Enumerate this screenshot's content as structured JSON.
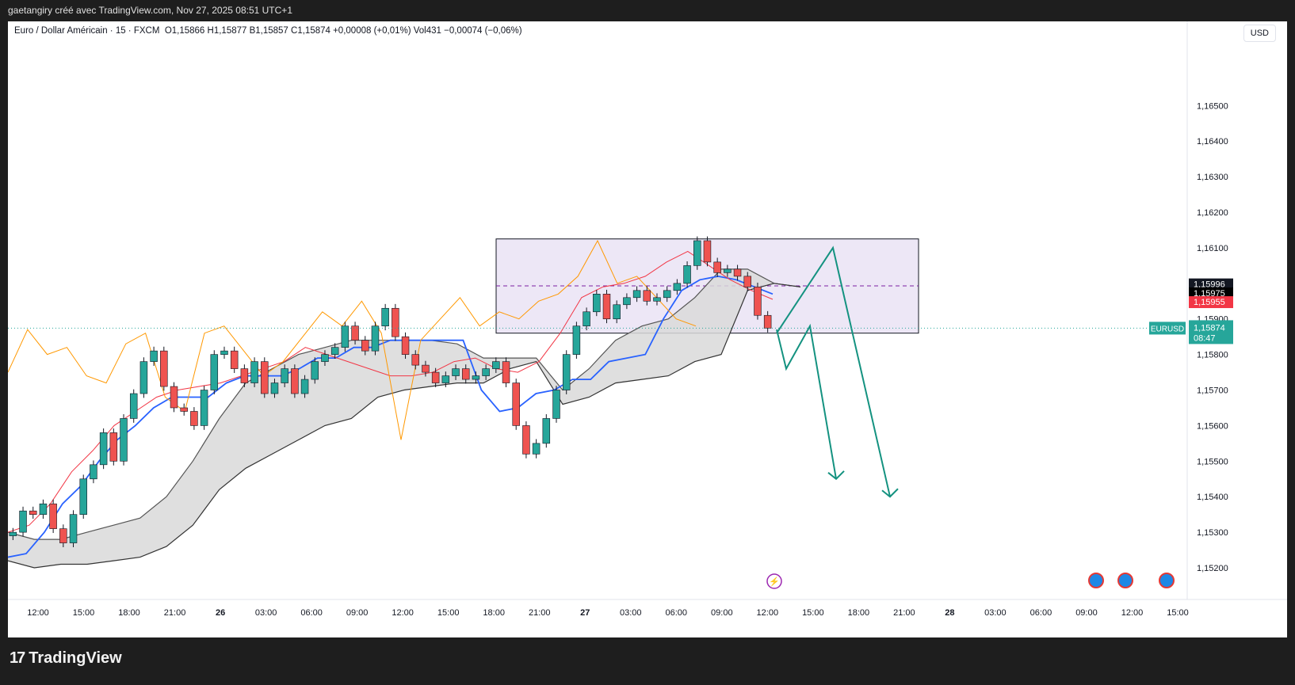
{
  "header": {
    "credit": "gaetangiry créé avec TradingView.com, Nov 27, 2025 08:51 UTC+1"
  },
  "legend": {
    "symbol": "Euro / Dollar Américain · 15 · FXCM",
    "ohlc": "O1,15866  H1,15877  B1,15857  C1,15874  +0,00008 (+0,01%)  Vol431  −0,00074 (−0,06%)"
  },
  "currency_button": "USD",
  "footer": {
    "brand": "TradingView",
    "logo_mark": "17"
  },
  "colors": {
    "up": "#26a69a",
    "down": "#ef5350",
    "fast_line": "#2962ff",
    "slow_line": "#f23645",
    "lagging_line": "#ff9800",
    "box_fill": "#ede7f6",
    "projection": "#149280",
    "cloud": "#d9d9d9"
  },
  "chart_data": {
    "type": "candlestick",
    "symbol": "EURUSD",
    "timeframe": "15",
    "ylim": [
      1.1516,
      1.1667
    ],
    "y_ticks": [
      "1,16500",
      "1,16400",
      "1,16300",
      "1,16200",
      "1,16100",
      "1,15900",
      "1,15800",
      "1,15700",
      "1,15600",
      "1,15500",
      "1,15400",
      "1,15300",
      "1,15200"
    ],
    "x_ticks": [
      "12:00",
      "15:00",
      "18:00",
      "21:00",
      "26",
      "03:00",
      "06:00",
      "09:00",
      "12:00",
      "15:00",
      "18:00",
      "21:00",
      "27",
      "03:00",
      "06:00",
      "09:00",
      "12:00",
      "15:00",
      "18:00",
      "21:00",
      "28",
      "03:00",
      "06:00",
      "09:00",
      "12:00",
      "15:00"
    ],
    "last_price": {
      "symbol_label": "EURUSD",
      "value": "1,15874",
      "countdown": "08:47",
      "y": 1.15874
    },
    "price_tags": [
      {
        "value": "1,15996",
        "y": 1.15996,
        "color": "#131722"
      },
      {
        "value": "1,15975",
        "y": 1.15975,
        "color": "#131722"
      },
      {
        "value": "1,15955",
        "y": 1.15955,
        "color": "#f23645"
      }
    ],
    "close_series": [
      1.153,
      1.1536,
      1.1535,
      1.1538,
      1.1531,
      1.1527,
      1.1535,
      1.1545,
      1.1549,
      1.1558,
      1.155,
      1.1562,
      1.1569,
      1.1578,
      1.1581,
      1.1571,
      1.1565,
      1.1564,
      1.156,
      1.157,
      1.158,
      1.1581,
      1.1576,
      1.1572,
      1.1578,
      1.1569,
      1.1572,
      1.1576,
      1.1569,
      1.1573,
      1.1578,
      1.158,
      1.1582,
      1.1588,
      1.1584,
      1.1581,
      1.1588,
      1.1593,
      1.1585,
      1.158,
      1.1577,
      1.1575,
      1.1572,
      1.1574,
      1.1576,
      1.1573,
      1.1574,
      1.1576,
      1.1578,
      1.1572,
      1.156,
      1.1552,
      1.1555,
      1.1562,
      1.157,
      1.158,
      1.1588,
      1.1592,
      1.1597,
      1.159,
      1.1594,
      1.1596,
      1.1598,
      1.1595,
      1.1596,
      1.1598,
      1.16,
      1.1605,
      1.1612,
      1.1606,
      1.1603,
      1.1604,
      1.1602,
      1.1599,
      1.1591,
      1.15874
    ],
    "series": [
      {
        "name": "",
        "role": "fast-line",
        "values": [
          1.1523,
          1.1524,
          1.153,
          1.1538,
          1.1543,
          1.155,
          1.1556,
          1.156,
          1.1565,
          1.1568,
          1.1568,
          1.1568,
          1.1572,
          1.1574,
          1.1574,
          1.1574,
          1.1576,
          1.1579,
          1.1579,
          1.1582,
          1.1582,
          1.1584,
          1.1584,
          1.1584,
          1.1584,
          1.1584,
          1.157,
          1.1564,
          1.1565,
          1.1569,
          1.157,
          1.1573,
          1.1573,
          1.1578,
          1.1579,
          1.158,
          1.159,
          1.1598,
          1.1601,
          1.1602,
          1.1601,
          1.1599,
          1.1597
        ]
      },
      {
        "name": "",
        "role": "slow-line",
        "values": [
          1.153,
          1.1532,
          1.1538,
          1.1547,
          1.1553,
          1.156,
          1.1564,
          1.1568,
          1.157,
          1.1571,
          1.1572,
          1.1574,
          1.1576,
          1.1578,
          1.1582,
          1.158,
          1.1578,
          1.1576,
          1.1574,
          1.1574,
          1.1575,
          1.1578,
          1.1579,
          1.1576,
          1.1575,
          1.1578,
          1.1586,
          1.1596,
          1.1599,
          1.16,
          1.1602,
          1.1606,
          1.1609,
          1.1605,
          1.1601,
          1.1598,
          1.15955
        ]
      },
      {
        "name": "",
        "role": "lagging-line",
        "values": [
          1.1575,
          1.1587,
          1.158,
          1.1582,
          1.1574,
          1.1572,
          1.1583,
          1.1586,
          1.1568,
          1.1564,
          1.1586,
          1.1588,
          1.1581,
          1.1574,
          1.1578,
          1.1585,
          1.1592,
          1.1588,
          1.1595,
          1.1586,
          1.1556,
          1.1584,
          1.159,
          1.1596,
          1.1588,
          1.1592,
          1.159,
          1.1595,
          1.1597,
          1.1602,
          1.1612,
          1.16,
          1.1602,
          1.1596,
          1.159,
          1.1588
        ]
      }
    ],
    "cloud": {
      "upper": [
        1.153,
        1.1528,
        1.1528,
        1.153,
        1.1532,
        1.1534,
        1.154,
        1.155,
        1.1562,
        1.1572,
        1.1576,
        1.158,
        1.1582,
        1.1584,
        1.1584,
        1.1584,
        1.1584,
        1.1583,
        1.1579,
        1.1579,
        1.1579,
        1.157,
        1.1576,
        1.1584,
        1.1588,
        1.159,
        1.1596,
        1.1604,
        1.1604,
        1.16,
        1.1599
      ],
      "lower": [
        1.1522,
        1.152,
        1.1521,
        1.1521,
        1.1522,
        1.1523,
        1.1526,
        1.1532,
        1.1542,
        1.1548,
        1.1552,
        1.1556,
        1.156,
        1.1562,
        1.1568,
        1.157,
        1.1571,
        1.1572,
        1.1572,
        1.1576,
        1.1578,
        1.1566,
        1.1568,
        1.1572,
        1.1573,
        1.1574,
        1.1578,
        1.158,
        1.1598,
        1.16,
        1.1599
      ]
    },
    "range_box": {
      "y_top": 1.16125,
      "y_bottom": 1.1586,
      "mid": 1.15993
    },
    "projections": [
      {
        "points": [
          1.1587,
          1.1576,
          1.1588,
          1.1545
        ]
      },
      {
        "points": [
          1.1586,
          1.161,
          1.154
        ]
      }
    ]
  }
}
